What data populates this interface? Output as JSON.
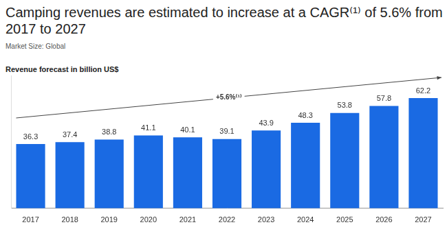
{
  "chart_data": {
    "type": "bar",
    "title": "Camping revenues are estimated to increase at a CAGR⁽¹⁾ of 5.6% from 2017 to 2027",
    "subtitle": "Market Size: Global",
    "ylabel": "Revenue forecast in billion US$",
    "annotation": "+5.6%⁽¹⁾",
    "categories": [
      "2017",
      "2018",
      "2019",
      "2020",
      "2021",
      "2022",
      "2023",
      "2024",
      "2025",
      "2026",
      "2027"
    ],
    "values": [
      36.3,
      37.4,
      38.8,
      41.1,
      40.1,
      39.1,
      43.9,
      48.3,
      53.8,
      57.8,
      62.2
    ],
    "color": "#1a6ae3",
    "ylim": [
      0,
      75
    ],
    "grid": false,
    "data_labels": true,
    "tick_labels": "x"
  }
}
